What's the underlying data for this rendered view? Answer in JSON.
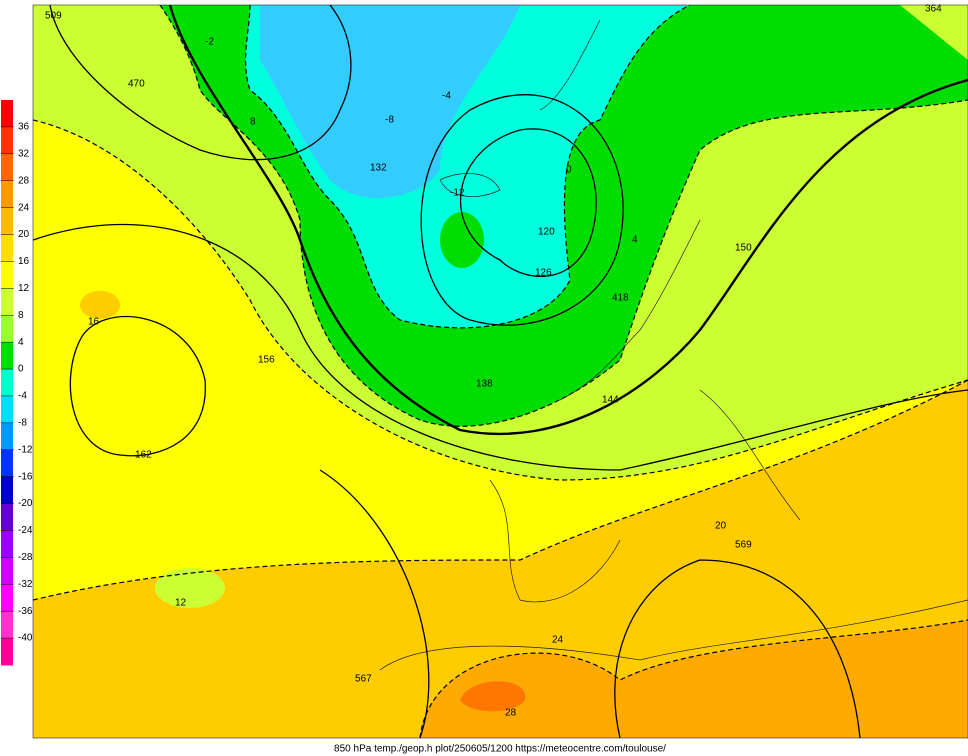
{
  "colorbar": {
    "ticks": [
      36,
      32,
      28,
      24,
      20,
      16,
      12,
      8,
      4,
      0,
      -4,
      -8,
      -12,
      -16,
      -20,
      -24,
      -28,
      -32,
      -36,
      -40
    ],
    "colors": [
      "#ff0000",
      "#ff3300",
      "#ff6600",
      "#ff9900",
      "#ffbb00",
      "#ffdd00",
      "#ffff00",
      "#ccff33",
      "#99ff33",
      "#00dd00",
      "#00ffcc",
      "#00ddff",
      "#0099ff",
      "#0033ff",
      "#0000cc",
      "#6600cc",
      "#9900ff",
      "#cc00ff",
      "#ff00ff",
      "#ff33cc",
      "#ff0099"
    ]
  },
  "map": {
    "labels": [
      "132",
      "138",
      "144",
      "150",
      "156",
      "162",
      "120",
      "126",
      "0",
      "4",
      "8",
      "12",
      "16",
      "20",
      "24",
      "28",
      "-4",
      "-8",
      "-12",
      "-2",
      "509",
      "364",
      "470",
      "567",
      "569",
      "418"
    ]
  },
  "caption": "850 hPa temp./geop.h plot/250605/1200 https://meteocentre.com/toulouse/"
}
